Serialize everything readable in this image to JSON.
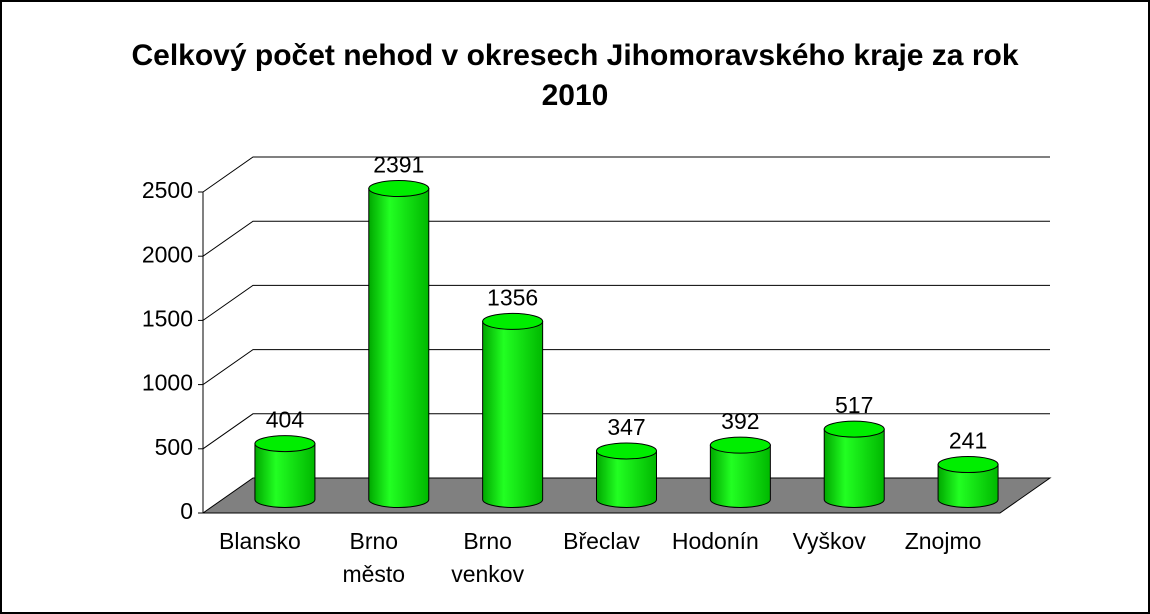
{
  "chart_data": {
    "type": "bar3d",
    "title": "Celkový počet nehod v okresech Jihomoravského kraje  za rok 2010",
    "categories": [
      "Blansko",
      "Brno město",
      "Brno venkov",
      "Břeclav",
      "Hodonín",
      "Vyškov",
      "Znojmo"
    ],
    "values": [
      404,
      2391,
      1356,
      347,
      392,
      517,
      241
    ],
    "color": "#00ee00",
    "ylim": [
      0,
      2500
    ],
    "yticks": [
      0,
      500,
      1000,
      1500,
      2000,
      2500
    ],
    "grid": true
  }
}
